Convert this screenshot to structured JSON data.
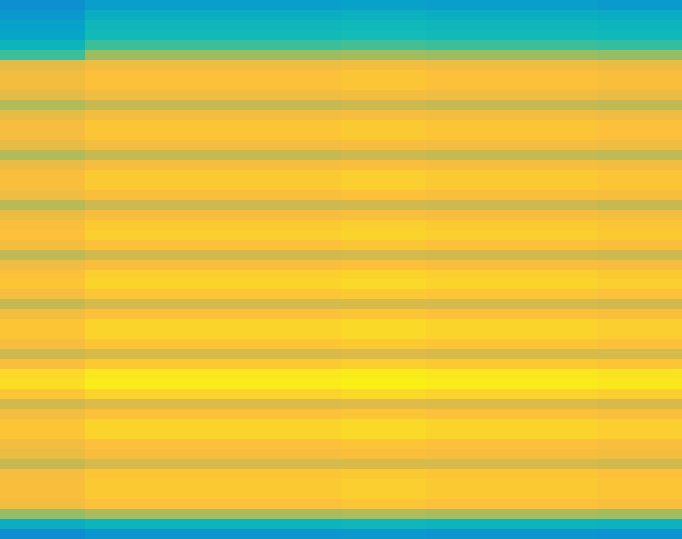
{
  "chart_data": {
    "type": "heatmap",
    "tick_labels": false,
    "color_range": [
      0,
      100
    ],
    "cells": [
      [
        30,
        35,
        35,
        35,
        36,
        35,
        35,
        34
      ],
      [
        33,
        42,
        42,
        42,
        43,
        42,
        42,
        41
      ],
      [
        36,
        46,
        46,
        46,
        47,
        46,
        46,
        45
      ],
      [
        38,
        48,
        48,
        48,
        49,
        48,
        48,
        47
      ],
      [
        45,
        55,
        55,
        55,
        56,
        55,
        55,
        54
      ],
      [
        55,
        68,
        68,
        68,
        69,
        68,
        68,
        67
      ],
      [
        81,
        84,
        84,
        84,
        85,
        84,
        84,
        83
      ],
      [
        85,
        88,
        88,
        88,
        89,
        88,
        88,
        87
      ],
      [
        85,
        88,
        88,
        88,
        89,
        88,
        88,
        87
      ],
      [
        81,
        84,
        84,
        84,
        85,
        84,
        84,
        83
      ],
      [
        71,
        74,
        74,
        74,
        75,
        74,
        74,
        73
      ],
      [
        82,
        85,
        85,
        85,
        86,
        85,
        85,
        84
      ],
      [
        86,
        89,
        89,
        89,
        90,
        89,
        89,
        88
      ],
      [
        86,
        89,
        89,
        89,
        90,
        89,
        89,
        88
      ],
      [
        82,
        85,
        85,
        85,
        86,
        85,
        85,
        84
      ],
      [
        71,
        74,
        74,
        74,
        75,
        74,
        74,
        73
      ],
      [
        83,
        86,
        86,
        86,
        87,
        86,
        86,
        85
      ],
      [
        87,
        90,
        90,
        90,
        91,
        90,
        90,
        89
      ],
      [
        87,
        90,
        90,
        90,
        91,
        90,
        90,
        89
      ],
      [
        84,
        87,
        87,
        87,
        88,
        87,
        87,
        86
      ],
      [
        72,
        75,
        75,
        75,
        76,
        75,
        75,
        74
      ],
      [
        83,
        86,
        86,
        86,
        87,
        86,
        86,
        85
      ],
      [
        87,
        90,
        90,
        90,
        91,
        90,
        90,
        89
      ],
      [
        88,
        91,
        91,
        91,
        92,
        91,
        91,
        90
      ],
      [
        85,
        88,
        88,
        88,
        89,
        88,
        88,
        87
      ],
      [
        73,
        76,
        76,
        76,
        77,
        76,
        76,
        75
      ],
      [
        84,
        87,
        87,
        87,
        88,
        87,
        87,
        86
      ],
      [
        88,
        91,
        91,
        91,
        92,
        91,
        91,
        90
      ],
      [
        89,
        92,
        92,
        92,
        93,
        92,
        92,
        91
      ],
      [
        86,
        89,
        89,
        89,
        90,
        89,
        89,
        88
      ],
      [
        74,
        77,
        77,
        77,
        78,
        77,
        77,
        76
      ],
      [
        85,
        88,
        88,
        88,
        89,
        88,
        88,
        87
      ],
      [
        89,
        92,
        92,
        92,
        93,
        92,
        92,
        91
      ],
      [
        89,
        92,
        92,
        92,
        93,
        92,
        92,
        91
      ],
      [
        86,
        89,
        89,
        89,
        90,
        89,
        89,
        88
      ],
      [
        75,
        78,
        78,
        78,
        79,
        78,
        78,
        77
      ],
      [
        87,
        90,
        90,
        90,
        91,
        90,
        90,
        89
      ],
      [
        93,
        96,
        96,
        96,
        97,
        96,
        96,
        95
      ],
      [
        94,
        97,
        97,
        97,
        98,
        97,
        97,
        96
      ],
      [
        89,
        92,
        92,
        92,
        93,
        92,
        92,
        91
      ],
      [
        76,
        79,
        79,
        79,
        80,
        79,
        79,
        78
      ],
      [
        85,
        88,
        88,
        88,
        89,
        88,
        88,
        87
      ],
      [
        89,
        92,
        92,
        92,
        93,
        92,
        92,
        91
      ],
      [
        89,
        92,
        92,
        92,
        93,
        92,
        92,
        91
      ],
      [
        85,
        88,
        88,
        88,
        89,
        88,
        88,
        87
      ],
      [
        83,
        86,
        86,
        86,
        87,
        86,
        86,
        85
      ],
      [
        74,
        77,
        77,
        77,
        78,
        77,
        77,
        76
      ],
      [
        86,
        89,
        89,
        89,
        90,
        89,
        89,
        88
      ],
      [
        87,
        90,
        90,
        90,
        91,
        90,
        90,
        89
      ],
      [
        87,
        90,
        90,
        90,
        91,
        90,
        90,
        89
      ],
      [
        85,
        88,
        88,
        88,
        89,
        88,
        88,
        87
      ],
      [
        67,
        70,
        70,
        70,
        71,
        70,
        70,
        69
      ],
      [
        42,
        45,
        45,
        45,
        46,
        45,
        45,
        44
      ],
      [
        29,
        32,
        32,
        32,
        33,
        32,
        32,
        31
      ]
    ]
  }
}
